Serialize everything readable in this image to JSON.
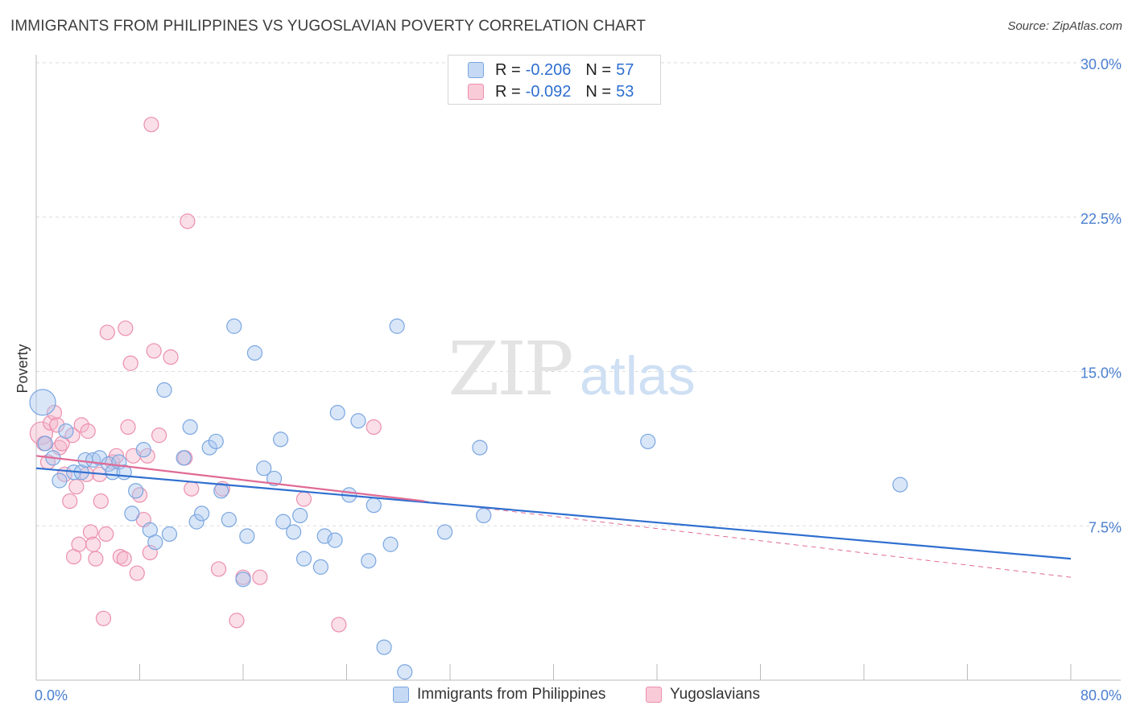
{
  "header": {
    "title": "IMMIGRANTS FROM PHILIPPINES VS YUGOSLAVIAN POVERTY CORRELATION CHART",
    "source": "Source: ZipAtlas.com"
  },
  "watermark": {
    "zip": "ZIP",
    "atlas": "atlas"
  },
  "legend": {
    "series1": {
      "r_label": "R =",
      "r_value": "-0.206",
      "n_label": "N =",
      "n_value": "57"
    },
    "series2": {
      "r_label": "R =",
      "r_value": "-0.092",
      "n_label": "N =",
      "n_value": "53"
    }
  },
  "colors": {
    "blue_fill": "#aac8f0",
    "blue_stroke": "#7aa6e0",
    "blue_line": "#2f6fd0",
    "pink_fill": "#f5b8cb",
    "pink_stroke": "#ec8fae",
    "pink_line": "#e06a95",
    "grid": "#dcdcdc",
    "tick_text": "#4a7fd0"
  },
  "chart_data": {
    "type": "scatter",
    "title": "IMMIGRANTS FROM PHILIPPINES VS YUGOSLAVIAN POVERTY CORRELATION CHART",
    "xlabel": "",
    "ylabel": "Poverty",
    "xlim": [
      0,
      80
    ],
    "ylim": [
      0,
      30
    ],
    "x_tick_labels": [
      "0.0%",
      "80.0%"
    ],
    "y_ticks": [
      7.5,
      15.0,
      22.5,
      30.0
    ],
    "y_tick_labels": [
      "7.5%",
      "15.0%",
      "22.5%",
      "30.0%"
    ],
    "legend_position": "top-center",
    "series": [
      {
        "name": "Immigrants from Philippines",
        "color": "blue",
        "r": -0.206,
        "n": 57,
        "trend": {
          "x": [
            0,
            80
          ],
          "y": [
            10.3,
            5.9
          ]
        },
        "points": [
          [
            0.5,
            13.5,
            16
          ],
          [
            0.7,
            11.5,
            9
          ],
          [
            1.3,
            10.8,
            9
          ],
          [
            1.8,
            9.7,
            9
          ],
          [
            2.3,
            12.1,
            9
          ],
          [
            2.9,
            10.1,
            9
          ],
          [
            3.5,
            10.1,
            9
          ],
          [
            3.8,
            10.7,
            9
          ],
          [
            4.4,
            10.7,
            9
          ],
          [
            4.9,
            10.8,
            9
          ],
          [
            5.6,
            10.5,
            9
          ],
          [
            5.9,
            10.1,
            9
          ],
          [
            6.4,
            10.6,
            9
          ],
          [
            6.8,
            10.1,
            9
          ],
          [
            7.4,
            8.1,
            9
          ],
          [
            7.7,
            9.2,
            9
          ],
          [
            8.3,
            11.2,
            9
          ],
          [
            8.8,
            7.3,
            9
          ],
          [
            9.2,
            6.7,
            9
          ],
          [
            9.9,
            14.1,
            9
          ],
          [
            10.3,
            7.1,
            9
          ],
          [
            11.4,
            10.8,
            9
          ],
          [
            11.9,
            12.3,
            9
          ],
          [
            12.4,
            7.7,
            9
          ],
          [
            12.8,
            8.1,
            9
          ],
          [
            13.4,
            11.3,
            9
          ],
          [
            13.9,
            11.6,
            9
          ],
          [
            14.3,
            9.2,
            9
          ],
          [
            14.9,
            7.8,
            9
          ],
          [
            15.3,
            17.2,
            9
          ],
          [
            16.0,
            4.9,
            9
          ],
          [
            16.3,
            7.0,
            9
          ],
          [
            16.9,
            15.9,
            9
          ],
          [
            17.6,
            10.3,
            9
          ],
          [
            18.4,
            9.8,
            9
          ],
          [
            18.9,
            11.7,
            9
          ],
          [
            19.1,
            7.7,
            9
          ],
          [
            19.9,
            7.2,
            9
          ],
          [
            20.4,
            8.0,
            9
          ],
          [
            20.7,
            5.9,
            9
          ],
          [
            22.0,
            5.5,
            9
          ],
          [
            22.3,
            7.0,
            9
          ],
          [
            23.1,
            6.8,
            9
          ],
          [
            23.3,
            13.0,
            9
          ],
          [
            24.2,
            9.0,
            9
          ],
          [
            24.9,
            12.6,
            9
          ],
          [
            25.7,
            5.8,
            9
          ],
          [
            26.1,
            8.5,
            9
          ],
          [
            26.9,
            1.6,
            9
          ],
          [
            27.4,
            6.6,
            9
          ],
          [
            27.9,
            17.2,
            9
          ],
          [
            28.5,
            0.4,
            9
          ],
          [
            31.6,
            7.2,
            9
          ],
          [
            34.3,
            11.3,
            9
          ],
          [
            34.6,
            8.0,
            9
          ],
          [
            47.3,
            11.6,
            9
          ],
          [
            66.8,
            9.5,
            9
          ]
        ]
      },
      {
        "name": "Yugoslavians",
        "color": "pink",
        "r": -0.092,
        "n": 53,
        "trend": {
          "x": [
            0,
            30
          ],
          "y": [
            10.9,
            8.7
          ]
        },
        "trend_ext": {
          "x": [
            30,
            80
          ],
          "y": [
            8.7,
            5.0
          ]
        },
        "points": [
          [
            0.4,
            12.0,
            14
          ],
          [
            0.6,
            11.5,
            9
          ],
          [
            0.9,
            10.6,
            9
          ],
          [
            1.1,
            12.5,
            9
          ],
          [
            1.4,
            13.0,
            9
          ],
          [
            1.6,
            12.4,
            9
          ],
          [
            1.8,
            11.3,
            9
          ],
          [
            2.0,
            11.5,
            9
          ],
          [
            2.2,
            10.0,
            9
          ],
          [
            2.6,
            8.7,
            9
          ],
          [
            2.8,
            11.9,
            9
          ],
          [
            2.9,
            6.0,
            9
          ],
          [
            3.1,
            9.4,
            9
          ],
          [
            3.3,
            6.6,
            9
          ],
          [
            3.5,
            12.4,
            9
          ],
          [
            3.9,
            10.0,
            9
          ],
          [
            4.0,
            12.1,
            9
          ],
          [
            4.2,
            7.2,
            9
          ],
          [
            4.4,
            6.6,
            9
          ],
          [
            4.6,
            5.9,
            9
          ],
          [
            4.9,
            10.0,
            9
          ],
          [
            5.0,
            8.7,
            9
          ],
          [
            5.2,
            3.0,
            9
          ],
          [
            5.4,
            7.1,
            9
          ],
          [
            5.5,
            16.9,
            9
          ],
          [
            5.9,
            10.6,
            9
          ],
          [
            6.2,
            10.9,
            9
          ],
          [
            6.5,
            6.0,
            9
          ],
          [
            6.8,
            5.9,
            9
          ],
          [
            6.9,
            17.1,
            9
          ],
          [
            7.1,
            12.3,
            9
          ],
          [
            7.3,
            15.4,
            9
          ],
          [
            7.5,
            10.9,
            9
          ],
          [
            7.8,
            5.2,
            9
          ],
          [
            8.0,
            9.0,
            9
          ],
          [
            8.3,
            7.8,
            9
          ],
          [
            8.6,
            10.9,
            9
          ],
          [
            8.8,
            6.2,
            9
          ],
          [
            8.9,
            27.0,
            9
          ],
          [
            9.1,
            16.0,
            9
          ],
          [
            9.5,
            11.9,
            9
          ],
          [
            10.4,
            15.7,
            9
          ],
          [
            11.5,
            10.8,
            9
          ],
          [
            11.7,
            22.3,
            9
          ],
          [
            12.0,
            9.3,
            9
          ],
          [
            14.1,
            5.4,
            9
          ],
          [
            14.4,
            9.3,
            9
          ],
          [
            15.5,
            2.9,
            9
          ],
          [
            17.3,
            5.0,
            9
          ],
          [
            20.7,
            8.8,
            9
          ],
          [
            23.4,
            2.7,
            9
          ],
          [
            26.1,
            12.3,
            9
          ],
          [
            16.0,
            5.0,
            9
          ]
        ]
      }
    ]
  },
  "bottom_legend": {
    "items": [
      "Immigrants from Philippines",
      "Yugoslavians"
    ]
  }
}
